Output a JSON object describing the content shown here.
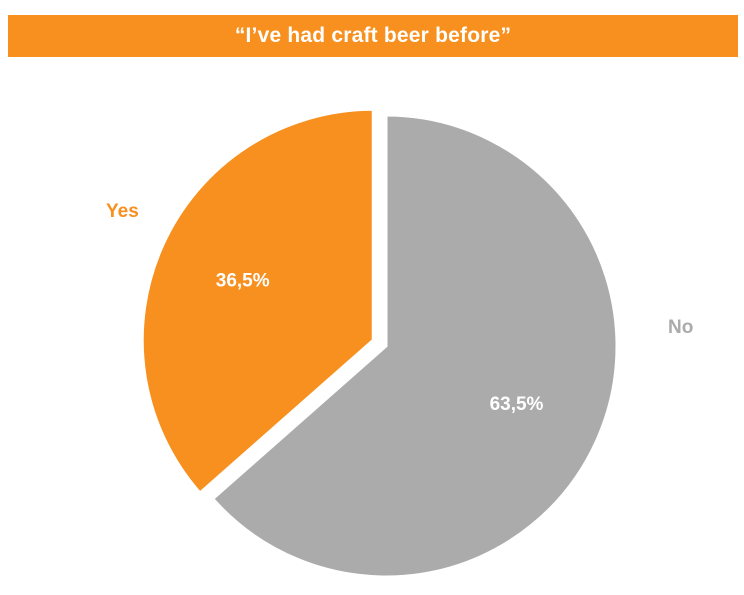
{
  "chart_data": {
    "type": "pie",
    "title": "“I’ve had craft beer before”",
    "slices": [
      {
        "label": "Yes",
        "value": 36.5,
        "value_label": "36,5%",
        "color": "#F7901E",
        "exploded": true
      },
      {
        "label": "No",
        "value": 63.5,
        "value_label": "63,5%",
        "color": "#ABABAB",
        "exploded": false
      }
    ],
    "legend": "none"
  },
  "colors": {
    "title_background": "#F7901E",
    "title_text": "#FFFFFF"
  }
}
